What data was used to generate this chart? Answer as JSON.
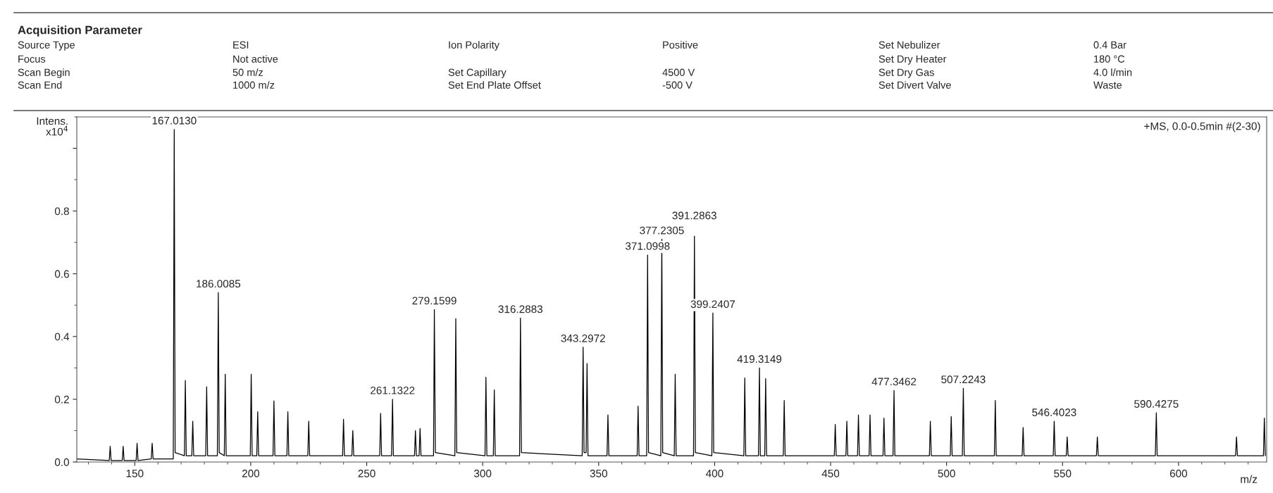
{
  "chart_data": {
    "type": "line",
    "title": "Acquisition Parameter",
    "subtitle": "+MS, 0.0-0.5min #(2-30)",
    "xlabel": "m/z",
    "ylabel": "Intens.\nx10$^{4}$",
    "annotations": [
      "Source Type",
      "ESI",
      "Ion Polarity",
      "Positive",
      "Set Nebulizer",
      "0.4 Bar",
      "Focus",
      "Not active",
      "Set Dry Heater",
      "180 °C",
      "Scan Begin",
      "50 m/z",
      "Set Capillary",
      "4500 V",
      "Set Dry Gas",
      "4.0 l/min",
      "Scan End",
      "1000 m/z",
      "Set End Plate Offset",
      "-500 V",
      "Set Divert Valve",
      "Waste",
      {
        "text": "167.0130",
        "x": 167.013,
        "y": 1.06
      },
      {
        "text": "186.0085",
        "x": 186.0085,
        "y": 0.54
      },
      {
        "text": "261.1322",
        "x": 261.1322,
        "y": 0.2
      },
      {
        "text": "279.1599",
        "x": 279.1599,
        "y": 0.486
      },
      {
        "text": "316.2883",
        "x": 316.2883,
        "y": 0.459
      },
      {
        "text": "343.2972",
        "x": 343.2972,
        "y": 0.366
      },
      {
        "text": "371.0998",
        "x": 371.0998,
        "y": 0.66
      },
      {
        "text": "377.2305",
        "x": 377.2305,
        "y": 0.71
      },
      {
        "text": "391.2863",
        "x": 391.2863,
        "y": 0.72
      },
      {
        "text": "399.2407",
        "x": 399.2407,
        "y": 0.475
      },
      {
        "text": "419.3149",
        "x": 419.3149,
        "y": 0.3
      },
      {
        "text": "477.3462",
        "x": 477.3462,
        "y": 0.228
      },
      {
        "text": "507.2243",
        "x": 507.2243,
        "y": 0.235
      },
      {
        "text": "546.4023",
        "x": 546.4023,
        "y": 0.13
      },
      {
        "text": "590.4275",
        "x": 590.4275,
        "y": 0.157
      }
    ],
    "xlim": [
      125,
      638
    ],
    "xticks": [
      150,
      200,
      250,
      300,
      350,
      400,
      450,
      500,
      550,
      600
    ],
    "ylim": [
      0,
      1.1
    ],
    "yticks": [
      {
        "value": 0,
        "label": "0.0"
      },
      0.2,
      0.4,
      0.6,
      0.8,
      {
        "value": 1.0,
        "label": null
      }
    ],
    "grid": false,
    "marker": "none",
    "line_style": "solid",
    "series": [
      {
        "color": "#000000",
        "x": [
          125,
          139.0,
          139.4,
          139.8,
          144.6,
          145,
          145.4,
          150.6,
          151,
          151.4,
          157.1,
          157.5,
          157.9,
          166.6,
          167.013,
          167.4,
          171.4,
          171.8,
          172.2,
          174.6,
          175,
          175.4,
          180.6,
          181,
          181.4,
          185.6,
          186.0085,
          186.4,
          188.6,
          189,
          189.4,
          199.8,
          200.2,
          200.6,
          202.6,
          203,
          203.4,
          209.6,
          210,
          210.4,
          215.6,
          216,
          216.4,
          224.6,
          225,
          225.4,
          239.6,
          240,
          240.4,
          243.6,
          244,
          244.4,
          255.6,
          256,
          256.4,
          260.7,
          261.1322,
          261.5,
          270.6,
          271,
          271.4,
          272.6,
          273,
          273.4,
          278.8,
          279.1599,
          279.6,
          288.0,
          288.4,
          288.8,
          301.0,
          301.4,
          301.8,
          304.6,
          305,
          305.4,
          315.9,
          316.2883,
          316.7,
          342.9,
          343.2972,
          343.7,
          344.6,
          345,
          345.4,
          353.6,
          354,
          354.4,
          366.6,
          367,
          367.4,
          370.7,
          371.0998,
          371.5,
          376.8,
          377.2305,
          377.6,
          382.6,
          383,
          383.4,
          390.9,
          391.2863,
          391.7,
          398.8,
          399.2407,
          399.6,
          412.6,
          413,
          413.4,
          418.9,
          419.3149,
          419.7,
          421.6,
          422,
          422.4,
          429.6,
          430,
          430.4,
          451.6,
          452,
          452.4,
          456.6,
          457,
          457.4,
          461.6,
          462,
          462.4,
          466.6,
          467,
          467.4,
          472.6,
          473,
          473.4,
          476.9,
          477.3462,
          477.7,
          492.6,
          493,
          493.4,
          501.6,
          502,
          502.4,
          506.8,
          507.2243,
          507.6,
          520.6,
          521,
          521.4,
          532.6,
          533,
          533.4,
          546.0,
          546.4023,
          546.8,
          551.6,
          552,
          552.4,
          564.6,
          565,
          565.4,
          590.0,
          590.4275,
          590.8,
          624.6,
          625,
          625.4,
          636.6,
          637,
          637.4
        ],
        "values": [
          0.01,
          0.005,
          0.05,
          0.005,
          0.005,
          0.05,
          0.005,
          0.005,
          0.06,
          0.005,
          0.01,
          0.06,
          0.01,
          0.01,
          1.06,
          0.03,
          0.02,
          0.26,
          0.02,
          0.02,
          0.13,
          0.02,
          0.02,
          0.24,
          0.02,
          0.02,
          0.54,
          0.03,
          0.02,
          0.28,
          0.02,
          0.02,
          0.28,
          0.02,
          0.02,
          0.16,
          0.02,
          0.02,
          0.195,
          0.02,
          0.02,
          0.16,
          0.02,
          0.02,
          0.13,
          0.02,
          0.02,
          0.136,
          0.02,
          0.02,
          0.1,
          0.02,
          0.02,
          0.155,
          0.02,
          0.02,
          0.2,
          0.02,
          0.02,
          0.1,
          0.02,
          0.02,
          0.107,
          0.02,
          0.02,
          0.486,
          0.03,
          0.02,
          0.457,
          0.03,
          0.02,
          0.27,
          0.02,
          0.02,
          0.23,
          0.02,
          0.02,
          0.459,
          0.03,
          0.02,
          0.366,
          0.03,
          0.03,
          0.314,
          0.02,
          0.02,
          0.15,
          0.02,
          0.02,
          0.178,
          0.02,
          0.02,
          0.66,
          0.03,
          0.02,
          0.71,
          0.03,
          0.02,
          0.28,
          0.02,
          0.02,
          0.72,
          0.03,
          0.02,
          0.475,
          0.03,
          0.02,
          0.268,
          0.02,
          0.02,
          0.3,
          0.02,
          0.02,
          0.266,
          0.02,
          0.02,
          0.196,
          0.02,
          0.02,
          0.12,
          0.02,
          0.02,
          0.13,
          0.02,
          0.02,
          0.15,
          0.02,
          0.02,
          0.15,
          0.02,
          0.02,
          0.14,
          0.02,
          0.02,
          0.228,
          0.02,
          0.02,
          0.13,
          0.02,
          0.02,
          0.145,
          0.02,
          0.02,
          0.235,
          0.02,
          0.02,
          0.196,
          0.02,
          0.02,
          0.11,
          0.02,
          0.02,
          0.13,
          0.02,
          0.02,
          0.08,
          0.02,
          0.02,
          0.08,
          0.02,
          0.02,
          0.157,
          0.02,
          0.02,
          0.08,
          0.02,
          0.02,
          0.14,
          0.02
        ]
      }
    ]
  }
}
